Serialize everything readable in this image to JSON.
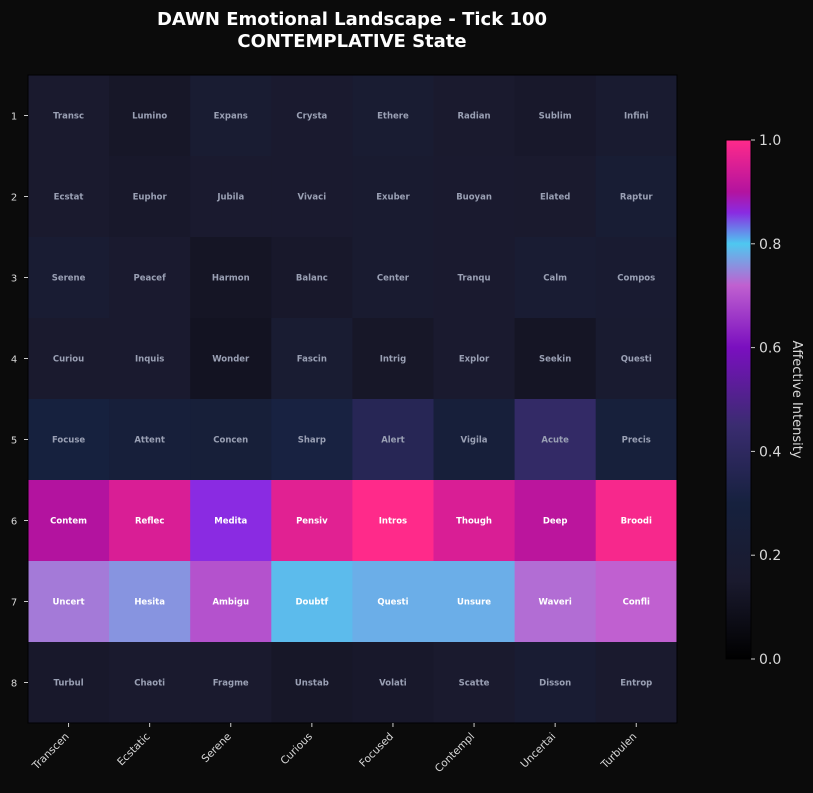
{
  "chart_data": {
    "type": "heatmap",
    "title": "DAWN Emotional Landscape - Tick 100",
    "subtitle": "CONTEMPLATIVE State",
    "x_tick_labels": [
      "Transcen",
      "Ecstatic",
      "Serene",
      "Curious",
      "Focused",
      "Contempl",
      "Uncertai",
      "Turbulen"
    ],
    "y_tick_labels": [
      "1",
      "2",
      "3",
      "4",
      "5",
      "6",
      "7",
      "8"
    ],
    "cell_labels": [
      [
        "Transc",
        "Lumino",
        "Expans",
        "Crysta",
        "Ethere",
        "Radian",
        "Sublim",
        "Infini"
      ],
      [
        "Ecstat",
        "Euphor",
        "Jubila",
        "Vivaci",
        "Exuber",
        "Buoyan",
        "Elated",
        "Raptur"
      ],
      [
        "Serene",
        "Peacef",
        "Harmon",
        "Balanc",
        "Center",
        "Tranqu",
        "Calm",
        "Compos"
      ],
      [
        "Curiou",
        "Inquis",
        "Wonder",
        "Fascin",
        "Intrig",
        "Explor",
        "Seekin",
        "Questi"
      ],
      [
        "Focuse",
        "Attent",
        "Concen",
        "Sharp",
        "Alert",
        "Vigila",
        "Acute",
        "Precis"
      ],
      [
        "Contem",
        "Reflec",
        "Medita",
        "Pensiv",
        "Intros",
        "Though",
        "Deep",
        "Broodi"
      ],
      [
        "Uncert",
        "Hesita",
        "Ambigu",
        "Doubtf",
        "Questi",
        "Unsure",
        "Waveri",
        "Confli"
      ],
      [
        "Turbul",
        "Chaoti",
        "Fragme",
        "Unstab",
        "Volati",
        "Scatte",
        "Disson",
        "Entrop"
      ]
    ],
    "values": [
      [
        0.15,
        0.13,
        0.19,
        0.16,
        0.19,
        0.15,
        0.14,
        0.17
      ],
      [
        0.15,
        0.14,
        0.16,
        0.16,
        0.17,
        0.16,
        0.15,
        0.21
      ],
      [
        0.2,
        0.16,
        0.12,
        0.14,
        0.17,
        0.16,
        0.2,
        0.18
      ],
      [
        0.15,
        0.16,
        0.11,
        0.19,
        0.13,
        0.16,
        0.12,
        0.17
      ],
      [
        0.3,
        0.26,
        0.25,
        0.31,
        0.37,
        0.26,
        0.42,
        0.27
      ],
      [
        0.9,
        0.95,
        0.86,
        0.96,
        1.0,
        0.95,
        0.91,
        0.99
      ],
      [
        0.74,
        0.76,
        0.7,
        0.79,
        0.78,
        0.78,
        0.73,
        0.72
      ],
      [
        0.14,
        0.15,
        0.15,
        0.13,
        0.14,
        0.15,
        0.2,
        0.15
      ]
    ],
    "colorbar": {
      "label": "Affective Intensity",
      "range": [
        0.0,
        1.0
      ],
      "ticks": [
        "0.0",
        "0.2",
        "0.4",
        "0.6",
        "0.8",
        "1.0"
      ],
      "colormap": [
        [
          0.0,
          "#000000"
        ],
        [
          0.15,
          "#1a1a2e"
        ],
        [
          0.3,
          "#16213e"
        ],
        [
          0.45,
          "#3a2c70"
        ],
        [
          0.6,
          "#7a0fbf"
        ],
        [
          0.72,
          "#c060d0"
        ],
        [
          0.8,
          "#4ec8f0"
        ],
        [
          0.86,
          "#8a2be2"
        ],
        [
          0.9,
          "#b3139f"
        ],
        [
          1.0,
          "#ff2a8a"
        ]
      ],
      "position": "right"
    },
    "grid": false,
    "colors": {
      "background": "#0b0b0b",
      "title": "#ffffff",
      "tick_label": "#d8d8d8",
      "cell_text_dim": "#9aa0b4",
      "cell_text_bright": "#ffffff"
    }
  }
}
